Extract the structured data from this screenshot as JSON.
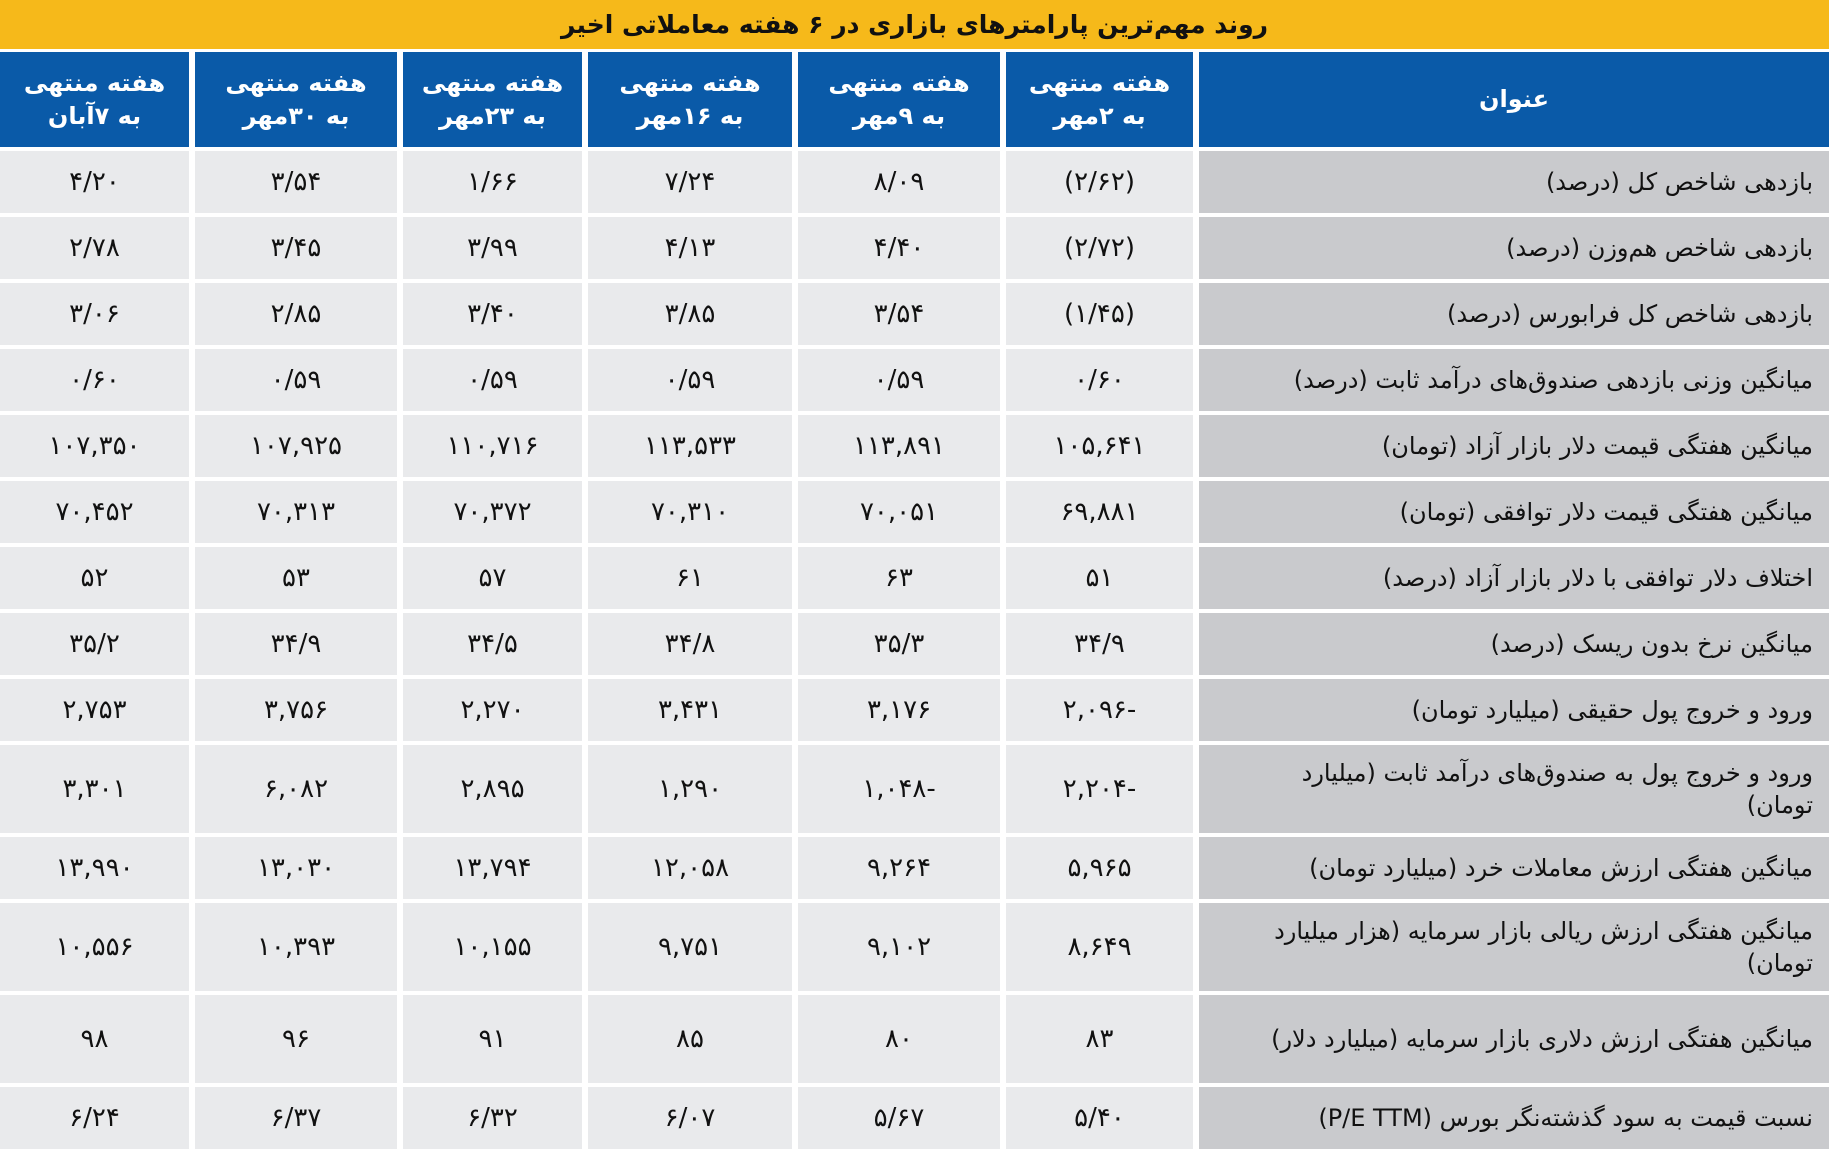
{
  "title": "روند مهم‌ترین پارامترهای بازاری در ۶ هفته معاملاتی اخیر",
  "table": {
    "header": [
      "عنوان",
      "هفته منتهی به ۲مهر",
      "هفته منتهی به ۹مهر",
      "هفته منتهی به ۱۶مهر",
      "هفته منتهی به ۲۳مهر",
      "هفته منتهی به ۳۰مهر",
      "هفته منتهی به ۷آبان"
    ],
    "rows": [
      [
        "بازدهی شاخص کل (درصد)",
        "(۲/۶۲)",
        "۸/۰۹",
        "۷/۲۴",
        "۱/۶۶",
        "۳/۵۴",
        "۴/۲۰"
      ],
      [
        "بازدهی شاخص هم‌وزن (درصد)",
        "(۲/۷۲)",
        "۴/۴۰",
        "۴/۱۳",
        "۳/۹۹",
        "۳/۴۵",
        "۲/۷۸"
      ],
      [
        "بازدهی شاخص کل فرابورس (درصد)",
        "(۱/۴۵)",
        "۳/۵۴",
        "۳/۸۵",
        "۳/۴۰",
        "۲/۸۵",
        "۳/۰۶"
      ],
      [
        "میانگین وزنی بازدهی صندوق‌های درآمد ثابت (درصد)",
        "۰/۶۰",
        "۰/۵۹",
        "۰/۵۹",
        "۰/۵۹",
        "۰/۵۹",
        "۰/۶۰"
      ],
      [
        "میانگین هفتگی قیمت دلار بازار آزاد (تومان)",
        "۱۰۵,۶۴۱",
        "۱۱۳,۸۹۱",
        "۱۱۳,۵۳۳",
        "۱۱۰,۷۱۶",
        "۱۰۷,۹۲۵",
        "۱۰۷,۳۵۰"
      ],
      [
        "میانگین هفتگی قیمت دلار توافقی (تومان)",
        "۶۹,۸۸۱",
        "۷۰,۰۵۱",
        "۷۰,۳۱۰",
        "۷۰,۳۷۲",
        "۷۰,۳۱۳",
        "۷۰,۴۵۲"
      ],
      [
        "اختلاف دلار توافقی با دلار بازار آزاد (درصد)",
        "۵۱",
        "۶۳",
        "۶۱",
        "۵۷",
        "۵۳",
        "۵۲"
      ],
      [
        "میانگین نرخ بدون ریسک (درصد)",
        "۳۴/۹",
        "۳۵/۳",
        "۳۴/۸",
        "۳۴/۵",
        "۳۴/۹",
        "۳۵/۲"
      ],
      [
        "ورود و خروج پول حقیقی (میلیارد تومان)",
        "-۲,۰۹۶",
        "۳,۱۷۶",
        "۳,۴۳۱",
        "۲,۲۷۰",
        "۳,۷۵۶",
        "۲,۷۵۳"
      ],
      [
        "ورود و خروج پول به صندوق‌های درآمد ثابت (میلیارد تومان)",
        "-۲,۲۰۴",
        "-۱,۰۴۸",
        "۱,۲۹۰",
        "۲,۸۹۵",
        "۶,۰۸۲",
        "۳,۳۰۱"
      ],
      [
        "میانگین هفتگی ارزش معاملات خرد (میلیارد تومان)",
        "۵,۹۶۵",
        "۹,۲۶۴",
        "۱۲,۰۵۸",
        "۱۳,۷۹۴",
        "۱۳,۰۳۰",
        "۱۳,۹۹۰"
      ],
      [
        "میانگین هفتگی ارزش ریالی بازار سرمایه (هزار میلیارد تومان)",
        "۸,۶۴۹",
        "۹,۱۰۲",
        "۹,۷۵۱",
        "۱۰,۱۵۵",
        "۱۰,۳۹۳",
        "۱۰,۵۵۶"
      ],
      [
        "میانگین هفتگی ارزش دلاری بازار سرمایه (میلیارد دلار)",
        "۸۳",
        "۸۰",
        "۸۵",
        "۹۱",
        "۹۶",
        "۹۸"
      ],
      [
        "نسبت قیمت به سود گذشته‌نگر بورس (P/E TTM)",
        "۵/۴۰",
        "۵/۶۷",
        "۶/۰۷",
        "۶/۳۲",
        "۶/۳۷",
        "۶/۲۴"
      ]
    ]
  }
}
